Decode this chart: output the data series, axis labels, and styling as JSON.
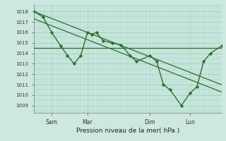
{
  "background_color": "#cce8e0",
  "grid_color": "#99ccbb",
  "line_color": "#2d6e2d",
  "marker_color": "#2d6e2d",
  "hline_value": 1014.5,
  "ylabel_ticks": [
    1009,
    1010,
    1011,
    1012,
    1013,
    1014,
    1015,
    1016,
    1017,
    1018
  ],
  "ylim": [
    1008.3,
    1018.7
  ],
  "xlabel": "Pression niveau de la mer( hPa )",
  "xtick_positions": [
    8,
    24,
    52,
    70
  ],
  "xtick_labels": [
    "Sam",
    "Mar",
    "Dim",
    "Lun"
  ],
  "xlim": [
    0,
    84
  ],
  "data_line_x": [
    0,
    4,
    8,
    12,
    15,
    18,
    21,
    24,
    26,
    28,
    31,
    35,
    39,
    43,
    46,
    52,
    55,
    58,
    61,
    66,
    70,
    73,
    76,
    79,
    84
  ],
  "data_line_y": [
    1018,
    1017.5,
    1016,
    1014.7,
    1013.8,
    1013,
    1013.8,
    1016,
    1015.8,
    1016,
    1015.2,
    1015,
    1014.8,
    1013.8,
    1013.2,
    1013.8,
    1013.2,
    1011,
    1010.5,
    1009,
    1010.2,
    1010.8,
    1013.2,
    1014,
    1014.7
  ],
  "trend_line_x": [
    0,
    84
  ],
  "trend_line_y": [
    1018,
    1011
  ],
  "trend_line2_x": [
    0,
    84
  ],
  "trend_line2_y": [
    1017.3,
    1010.3
  ],
  "minor_x_step": 3,
  "minor_y_vals": [
    1008.5,
    1009.5,
    1010.5,
    1011.5,
    1012.5,
    1013.5,
    1014.5,
    1015.5,
    1016.5,
    1017.5,
    1018.5
  ]
}
